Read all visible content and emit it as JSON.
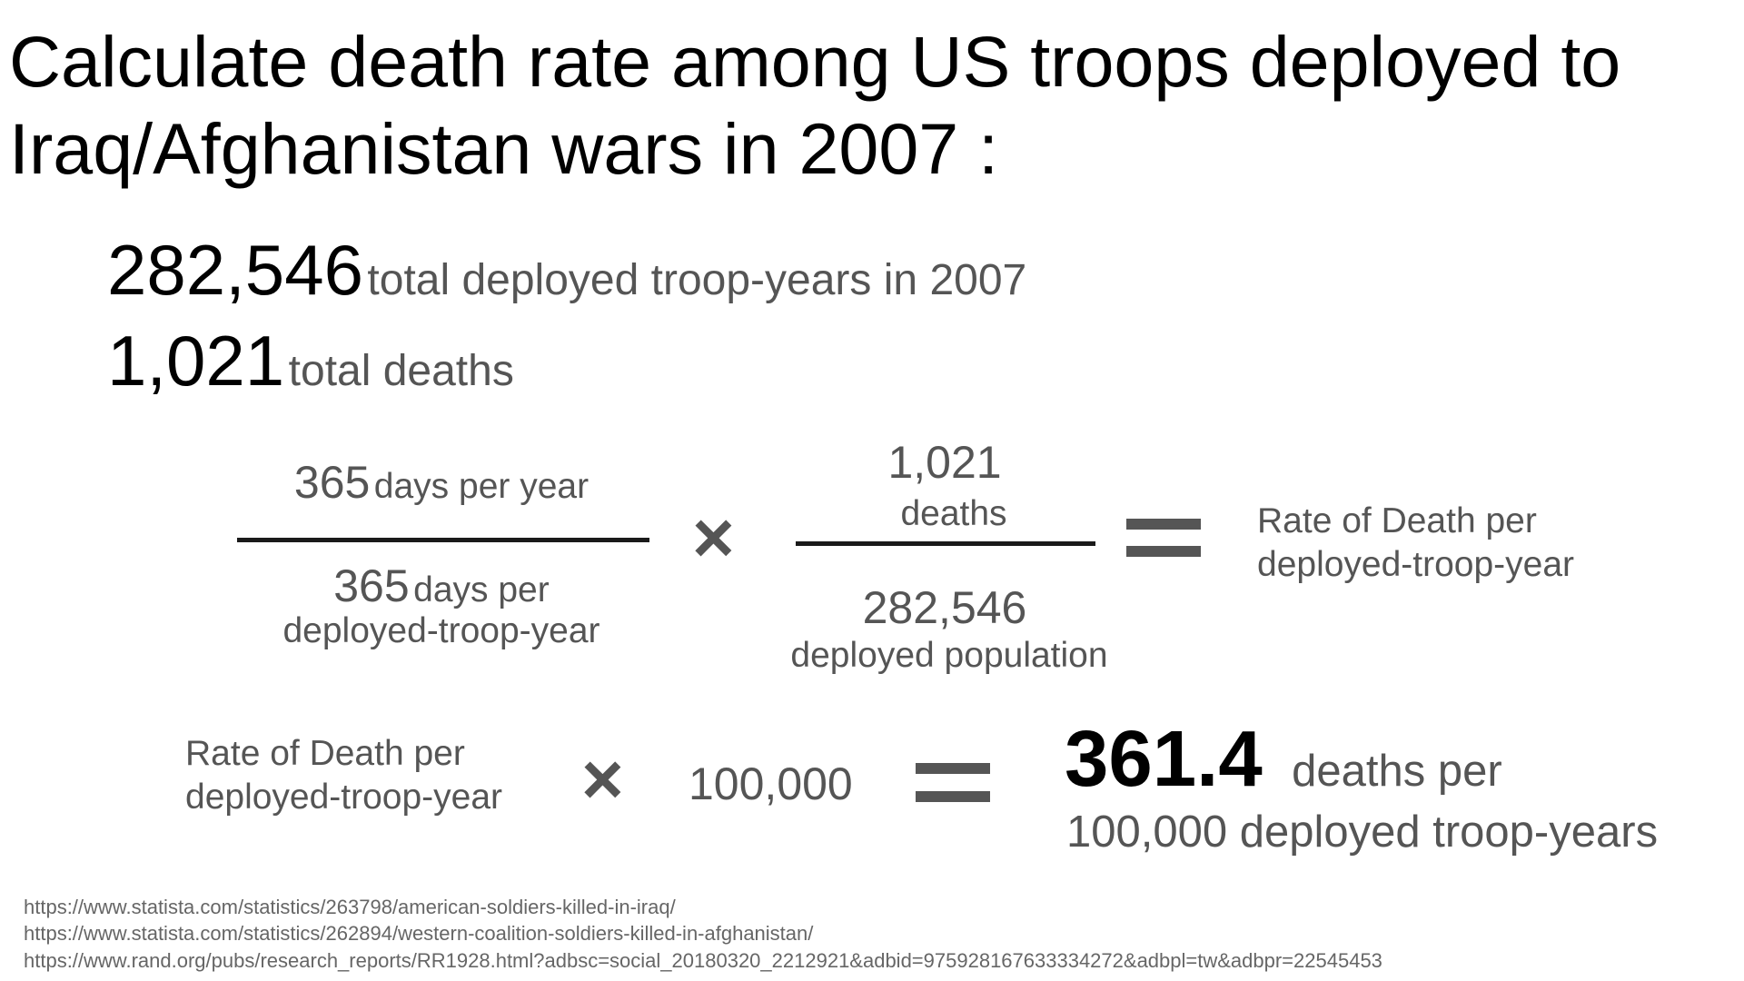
{
  "title": {
    "line1": "Calculate death rate among US troops deployed to",
    "line2": "Iraq/Afghanistan wars in 2007 :"
  },
  "stats": {
    "troop_years_value": "282,546",
    "troop_years_label": "total deployed troop-years in 2007",
    "deaths_value": "1,021",
    "deaths_label": "total deaths"
  },
  "equation1": {
    "frac1_num_value": "365",
    "frac1_num_label": "days per year",
    "frac1_den_value": "365",
    "frac1_den_label": "days per",
    "frac1_den_label2": "deployed-troop-year",
    "times": "×",
    "frac2_num_value": "1,021",
    "frac2_num_label": "deaths",
    "frac2_den_value": "282,546",
    "frac2_den_label": "deployed population",
    "result_line1": "Rate of Death per",
    "result_line2": "deployed-troop-year"
  },
  "equation2": {
    "rate_line1": "Rate of Death per",
    "rate_line2": "deployed-troop-year",
    "times": "×",
    "multiplier": "100,000",
    "result_value": "361.4",
    "result_label1": "deaths per",
    "result_label2": "100,000 deployed troop-years"
  },
  "sources": [
    "https://www.statista.com/statistics/263798/american-soldiers-killed-in-iraq/",
    "https://www.statista.com/statistics/262894/western-coalition-soldiers-killed-in-afghanistan/",
    "https://www.rand.org/pubs/research_reports/RR1928.html?adbsc=social_20180320_2212921&adbid=975928167633334272&adbpl=tw&adbpr=22545453"
  ]
}
